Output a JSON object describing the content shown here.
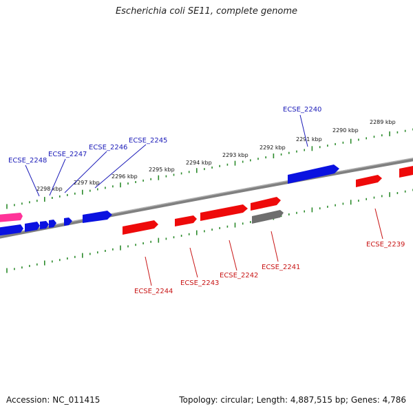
{
  "title": "Escherichia coli SE11, complete genome",
  "accession": "Accession: NC_011415",
  "summary": "Topology: circular; Length: 4,887,515 bp; Genes: 4,786",
  "colors": {
    "backbone": "#808080",
    "forward_gene": "#0a12e0",
    "reverse_gene": "#ee0a0a",
    "rna_gene": "#ff3399",
    "other_gene": "#6e6e6e",
    "tick": "#2a8a2a",
    "forward_label": "#1a1ab8",
    "reverse_label": "#c81414"
  },
  "scale_labels": {
    "fwd": [
      "2298 kbp",
      "2297 kbp",
      "2296 kbp",
      "2295 kbp",
      "2294 kbp",
      "2293 kbp",
      "2292 kbp",
      "2291 kbp",
      "2290 kbp",
      "2289 kbp"
    ]
  },
  "gene_labels": {
    "forward": [
      "ECSE_2248",
      "ECSE_2247",
      "ECSE_2246",
      "ECSE_2245",
      "ECSE_2240"
    ],
    "reverse": [
      "ECSE_2244",
      "ECSE_2243",
      "ECSE_2242",
      "ECSE_2241",
      "ECSE_2239"
    ]
  }
}
